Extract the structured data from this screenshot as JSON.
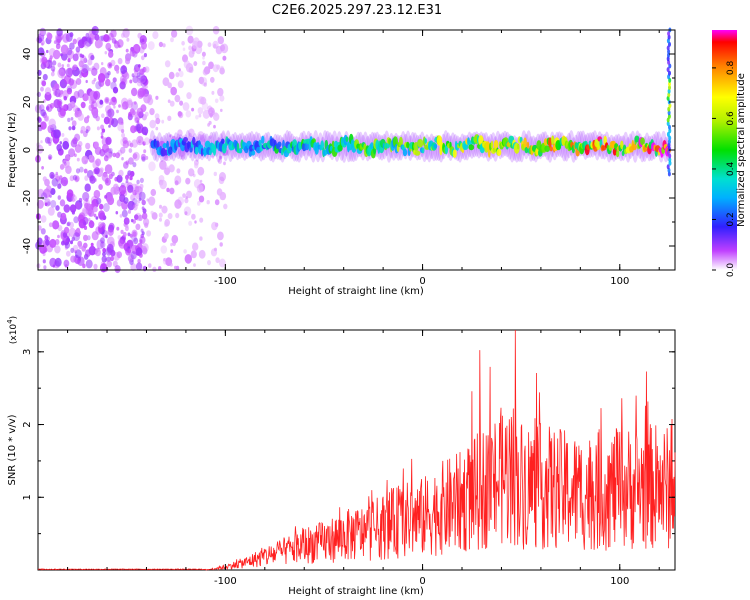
{
  "title": "C2E6.2025.297.23.12.E31",
  "chart_data": [
    {
      "type": "heatmap",
      "xlabel": "Height of straight line (km)",
      "ylabel": "Frequency (Hz)",
      "xlim": [
        -195,
        128
      ],
      "ylim": [
        -50,
        50
      ],
      "xticks": [
        -100,
        0,
        100
      ],
      "yticks": [
        -40,
        -20,
        0,
        20,
        40
      ],
      "colorbar": {
        "label": "Normalized spectral amplitude",
        "range": [
          0,
          0.95
        ],
        "ticks": [
          0.0,
          0.2,
          0.4,
          0.6,
          0.8
        ]
      },
      "features": [
        {
          "kind": "noise",
          "x_range": [
            -195,
            -140
          ],
          "y_range": [
            -50,
            50
          ],
          "amplitude": 0.05
        },
        {
          "kind": "noise",
          "x_range": [
            -140,
            -100
          ],
          "y_range": [
            -50,
            50
          ],
          "amplitude": 0.02
        },
        {
          "kind": "band",
          "x_range": [
            -137,
            125
          ],
          "center_hz": 1.5,
          "width_hz": 8,
          "amplitude_start": 0.25,
          "amplitude_end": 0.9
        },
        {
          "kind": "vertical_streak",
          "x": 125,
          "y_range": [
            -10,
            50
          ],
          "amplitude": 0.3
        }
      ]
    },
    {
      "type": "line",
      "xlabel": "Height of straight line (km)",
      "ylabel": "SNR (10 * v/v)",
      "y_multiplier": "(x10",
      "y_multiplier_exp": "4",
      "y_multiplier_close": ")",
      "xlim": [
        -195,
        128
      ],
      "ylim": [
        0,
        3.3
      ],
      "xticks": [
        -100,
        0,
        100
      ],
      "yticks": [
        1,
        2,
        3
      ],
      "series": [
        {
          "color": "#ff2020",
          "envelope": {
            "x": [
              -195,
              -110,
              -100,
              -90,
              -80,
              -70,
              -60,
              -50,
              -40,
              -30,
              -20,
              -10,
              0,
              10,
              20,
              30,
              40,
              45,
              50,
              60,
              70,
              80,
              90,
              100,
              110,
              120,
              128
            ],
            "y": [
              0.0,
              0.0,
              0.05,
              0.12,
              0.22,
              0.3,
              0.4,
              0.45,
              0.55,
              0.6,
              0.7,
              0.8,
              0.85,
              1.0,
              1.1,
              1.3,
              1.5,
              1.6,
              1.4,
              1.35,
              1.3,
              1.25,
              1.3,
              1.3,
              1.35,
              1.35,
              1.3
            ]
          },
          "peak": {
            "x": 47,
            "y": 3.3
          }
        }
      ]
    }
  ]
}
